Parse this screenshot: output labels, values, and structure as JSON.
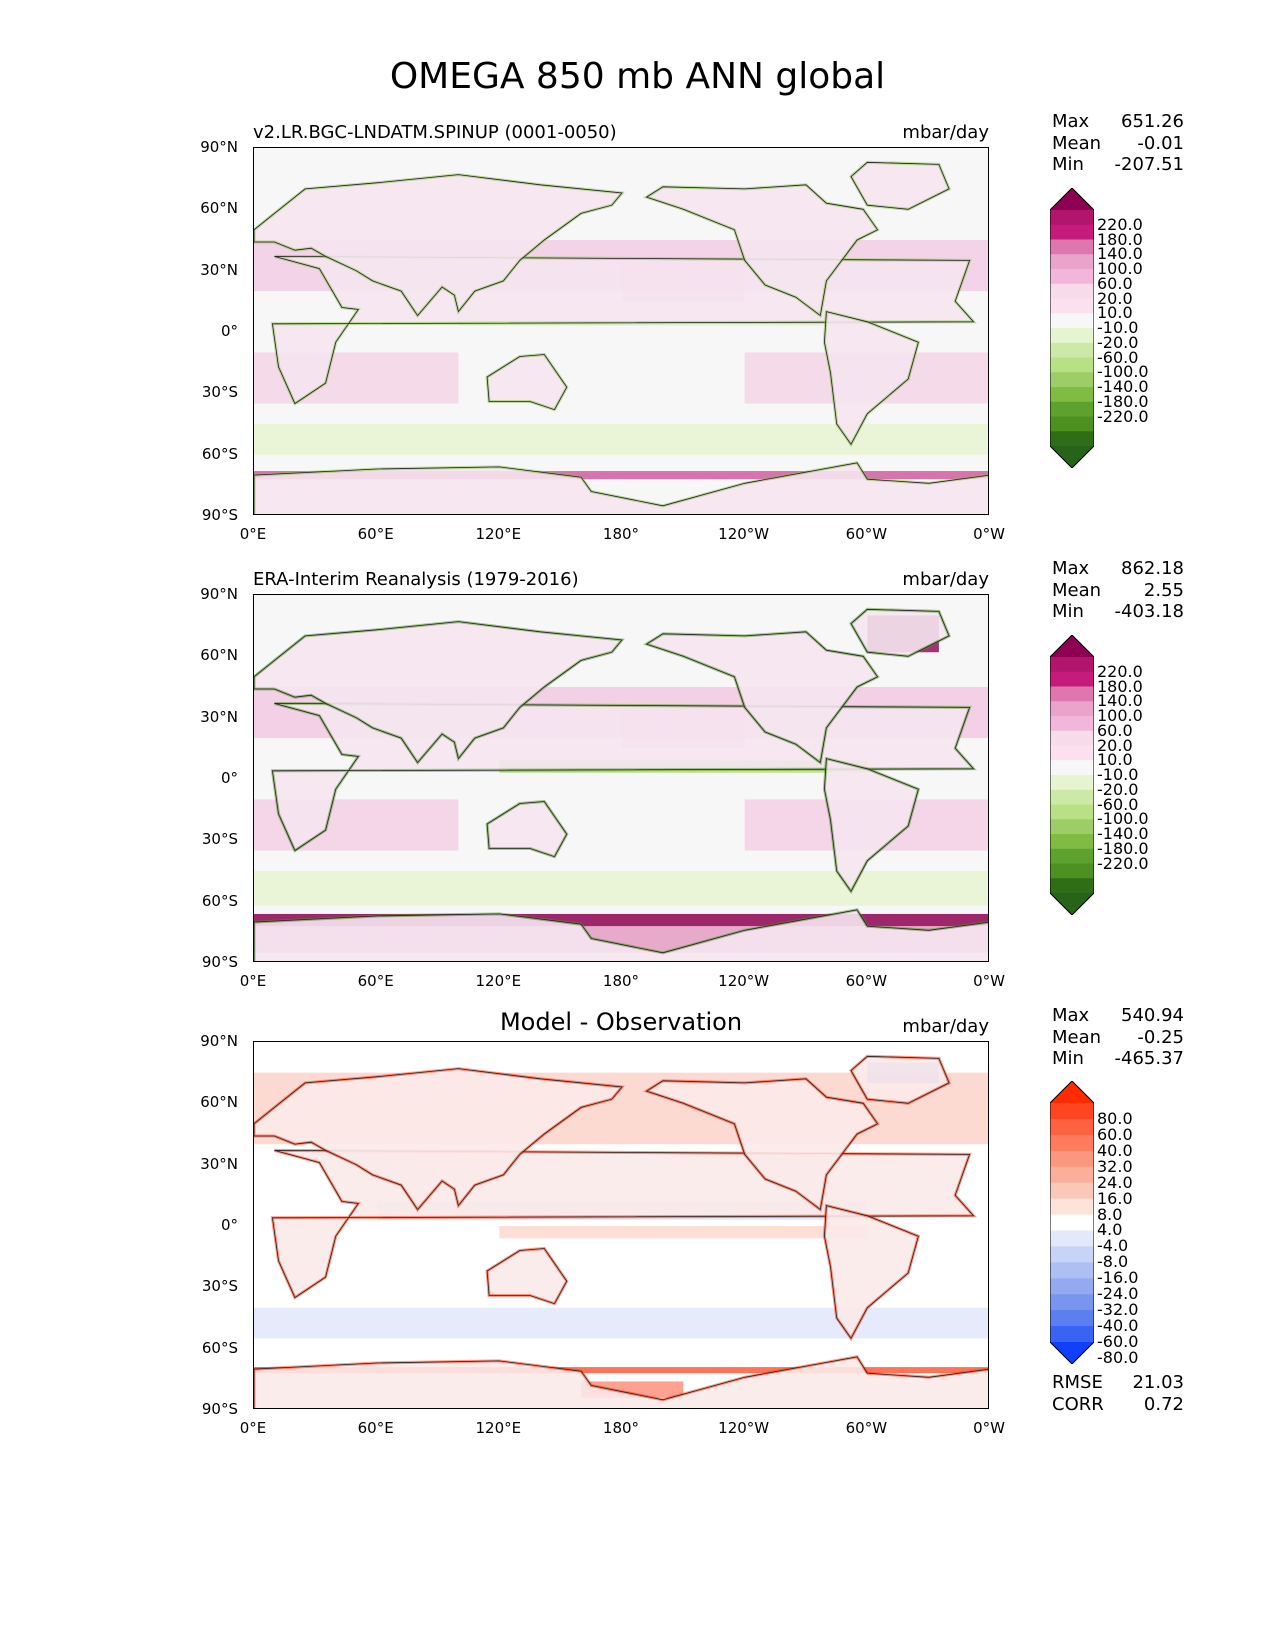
{
  "title": "OMEGA 850 mb ANN global",
  "y_ticks": [
    "90°N",
    "60°N",
    "30°N",
    "0°",
    "30°S",
    "60°S",
    "90°S"
  ],
  "x_ticks": [
    "0°E",
    "60°E",
    "120°E",
    "180°",
    "120°W",
    "60°W",
    "0°W"
  ],
  "panels": [
    {
      "title": "v2.LR.BGC-LNDATM.SPINUP (0001-0050)",
      "units": "mbar/day",
      "stats": {
        "max_label": "Max",
        "max": "651.26",
        "mean_label": "Mean",
        "mean": "-0.01",
        "min_label": "Min",
        "min": "-207.51"
      },
      "colorbar": {
        "labels": [
          "220.0",
          "180.0",
          "140.0",
          "100.0",
          "60.0",
          "20.0",
          "10.0",
          "-10.0",
          "-20.0",
          "-60.0",
          "-100.0",
          "-140.0",
          "-180.0",
          "-220.0"
        ],
        "colors": [
          "#8e0152",
          "#b3156d",
          "#c51b7d",
          "#de77ae",
          "#eaa4cc",
          "#f1b6da",
          "#f8dbeb",
          "#fde0ef",
          "#f7f7f7",
          "#e6f5d0",
          "#cde9a8",
          "#b8e186",
          "#9ccd67",
          "#7fbc41",
          "#5da12e",
          "#4d9221",
          "#2f6e17",
          "#276419"
        ]
      }
    },
    {
      "title": "ERA-Interim Reanalysis (1979-2016)",
      "units": "mbar/day",
      "stats": {
        "max_label": "Max",
        "max": "862.18",
        "mean_label": "Mean",
        "mean": "2.55",
        "min_label": "Min",
        "min": "-403.18"
      },
      "colorbar": {
        "labels": [
          "220.0",
          "180.0",
          "140.0",
          "100.0",
          "60.0",
          "20.0",
          "10.0",
          "-10.0",
          "-20.0",
          "-60.0",
          "-100.0",
          "-140.0",
          "-180.0",
          "-220.0"
        ],
        "colors": [
          "#8e0152",
          "#b3156d",
          "#c51b7d",
          "#de77ae",
          "#eaa4cc",
          "#f1b6da",
          "#f8dbeb",
          "#fde0ef",
          "#f7f7f7",
          "#e6f5d0",
          "#cde9a8",
          "#b8e186",
          "#9ccd67",
          "#7fbc41",
          "#5da12e",
          "#4d9221",
          "#2f6e17",
          "#276419"
        ]
      }
    },
    {
      "title": "Model - Observation",
      "units": "mbar/day",
      "stats": {
        "max_label": "Max",
        "max": "540.94",
        "mean_label": "Mean",
        "mean": "-0.25",
        "min_label": "Min",
        "min": "-465.37"
      },
      "extra_stats": {
        "rmse_label": "RMSE",
        "rmse": "21.03",
        "corr_label": "CORR",
        "corr": "0.72"
      },
      "colorbar": {
        "labels": [
          "80.0",
          "60.0",
          "40.0",
          "32.0",
          "24.0",
          "16.0",
          "8.0",
          "4.0",
          "-4.0",
          "-8.0",
          "-16.0",
          "-24.0",
          "-32.0",
          "-40.0",
          "-60.0",
          "-80.0"
        ],
        "colors": [
          "#ff2a00",
          "#ff4422",
          "#ff6040",
          "#fe7b5e",
          "#fc977f",
          "#fbae9a",
          "#fac8b8",
          "#fde3da",
          "#ffffff",
          "#e3e9fb",
          "#c8d3f8",
          "#aebff4",
          "#94aaf0",
          "#7a95ed",
          "#5c7ef0",
          "#3a62f5",
          "#0f3fff"
        ]
      }
    }
  ]
}
